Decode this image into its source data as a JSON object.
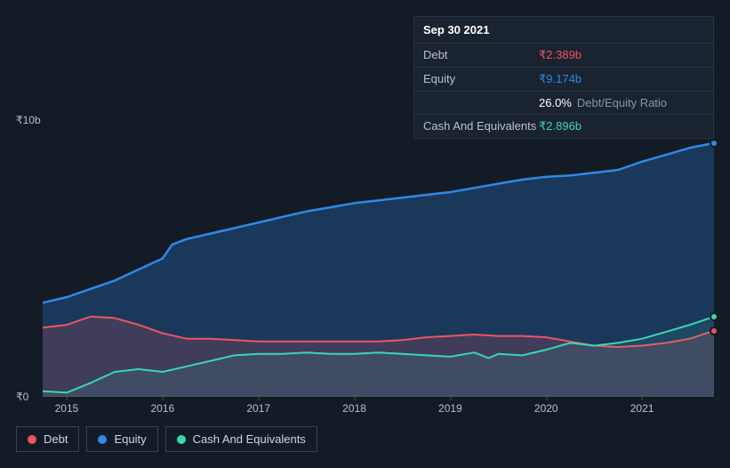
{
  "tooltip": {
    "date": "Sep 30 2021",
    "rows": [
      {
        "label": "Debt",
        "value": "₹2.389b",
        "color": "#ef5362"
      },
      {
        "label": "Equity",
        "value": "₹9.174b",
        "color": "#2e8ae6"
      },
      {
        "label": "",
        "value": "26.0%",
        "suffix": "Debt/Equity Ratio",
        "color": "#ffffff"
      },
      {
        "label": "Cash And Equivalents",
        "value": "₹2.896b",
        "color": "#39d6b5"
      }
    ]
  },
  "chart": {
    "type": "area",
    "background": "#131b25",
    "grid_color": "#3a424e",
    "ylim": [
      0,
      10
    ],
    "ylabels": [
      {
        "text": "₹10b",
        "v": 10
      },
      {
        "text": "₹0",
        "v": 0
      }
    ],
    "xlim": [
      2014.75,
      2021.75
    ],
    "xticks": [
      2015,
      2016,
      2017,
      2018,
      2019,
      2020,
      2021
    ],
    "series": {
      "debt": {
        "label": "Debt",
        "color": "#ef5362",
        "fill_opacity": 0.18,
        "line_width": 2,
        "points": [
          [
            2014.75,
            2.5
          ],
          [
            2015.0,
            2.6
          ],
          [
            2015.25,
            2.9
          ],
          [
            2015.5,
            2.85
          ],
          [
            2015.75,
            2.6
          ],
          [
            2016.0,
            2.3
          ],
          [
            2016.25,
            2.1
          ],
          [
            2016.5,
            2.1
          ],
          [
            2016.75,
            2.05
          ],
          [
            2017.0,
            2.0
          ],
          [
            2017.25,
            2.0
          ],
          [
            2017.5,
            2.0
          ],
          [
            2017.75,
            2.0
          ],
          [
            2018.0,
            2.0
          ],
          [
            2018.25,
            2.0
          ],
          [
            2018.5,
            2.05
          ],
          [
            2018.75,
            2.15
          ],
          [
            2019.0,
            2.2
          ],
          [
            2019.25,
            2.25
          ],
          [
            2019.5,
            2.2
          ],
          [
            2019.75,
            2.2
          ],
          [
            2020.0,
            2.15
          ],
          [
            2020.25,
            2.0
          ],
          [
            2020.5,
            1.85
          ],
          [
            2020.75,
            1.8
          ],
          [
            2021.0,
            1.85
          ],
          [
            2021.25,
            1.95
          ],
          [
            2021.5,
            2.1
          ],
          [
            2021.75,
            2.389
          ]
        ]
      },
      "equity": {
        "label": "Equity",
        "color": "#2e8ae6",
        "fill_opacity": 0.28,
        "line_width": 2.5,
        "points": [
          [
            2014.75,
            3.4
          ],
          [
            2015.0,
            3.6
          ],
          [
            2015.25,
            3.9
          ],
          [
            2015.5,
            4.2
          ],
          [
            2015.75,
            4.6
          ],
          [
            2016.0,
            5.0
          ],
          [
            2016.1,
            5.5
          ],
          [
            2016.25,
            5.7
          ],
          [
            2016.5,
            5.9
          ],
          [
            2016.75,
            6.1
          ],
          [
            2017.0,
            6.3
          ],
          [
            2017.25,
            6.5
          ],
          [
            2017.5,
            6.7
          ],
          [
            2017.75,
            6.85
          ],
          [
            2018.0,
            7.0
          ],
          [
            2018.25,
            7.1
          ],
          [
            2018.5,
            7.2
          ],
          [
            2018.75,
            7.3
          ],
          [
            2019.0,
            7.4
          ],
          [
            2019.25,
            7.55
          ],
          [
            2019.5,
            7.7
          ],
          [
            2019.75,
            7.85
          ],
          [
            2020.0,
            7.95
          ],
          [
            2020.25,
            8.0
          ],
          [
            2020.5,
            8.1
          ],
          [
            2020.75,
            8.2
          ],
          [
            2021.0,
            8.5
          ],
          [
            2021.25,
            8.75
          ],
          [
            2021.5,
            9.0
          ],
          [
            2021.75,
            9.174
          ]
        ]
      },
      "cash": {
        "label": "Cash And Equivalents",
        "color": "#39d6b5",
        "fill_opacity": 0.1,
        "line_width": 2,
        "points": [
          [
            2014.75,
            0.2
          ],
          [
            2015.0,
            0.15
          ],
          [
            2015.25,
            0.5
          ],
          [
            2015.5,
            0.9
          ],
          [
            2015.75,
            1.0
          ],
          [
            2016.0,
            0.9
          ],
          [
            2016.25,
            1.1
          ],
          [
            2016.5,
            1.3
          ],
          [
            2016.75,
            1.5
          ],
          [
            2017.0,
            1.55
          ],
          [
            2017.25,
            1.55
          ],
          [
            2017.5,
            1.6
          ],
          [
            2017.75,
            1.55
          ],
          [
            2018.0,
            1.55
          ],
          [
            2018.25,
            1.6
          ],
          [
            2018.5,
            1.55
          ],
          [
            2018.75,
            1.5
          ],
          [
            2019.0,
            1.45
          ],
          [
            2019.25,
            1.6
          ],
          [
            2019.4,
            1.4
          ],
          [
            2019.5,
            1.55
          ],
          [
            2019.75,
            1.5
          ],
          [
            2020.0,
            1.7
          ],
          [
            2020.25,
            1.95
          ],
          [
            2020.5,
            1.85
          ],
          [
            2020.75,
            1.95
          ],
          [
            2021.0,
            2.1
          ],
          [
            2021.25,
            2.35
          ],
          [
            2021.5,
            2.6
          ],
          [
            2021.75,
            2.896
          ]
        ]
      }
    },
    "legend_order": [
      "debt",
      "equity",
      "cash"
    ]
  }
}
